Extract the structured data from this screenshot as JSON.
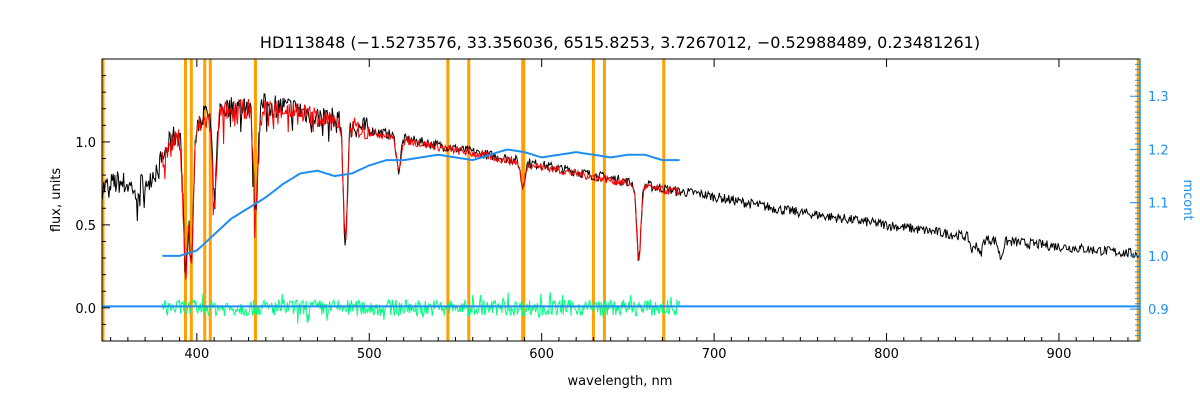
{
  "chart_data": {
    "type": "line",
    "title": "HD113848   (−1.5273576, 33.356036, 6515.8253, 3.7267012, −0.52988489, 0.23481261)",
    "xlabel": "wavelength, nm",
    "ylabel": "flux, units",
    "ylabel_right": "mcont",
    "xlim": [
      345,
      947
    ],
    "ylim": [
      -0.2,
      1.5
    ],
    "ylim_right": [
      0.84,
      1.37
    ],
    "x_ticks": [
      400,
      500,
      600,
      700,
      800,
      900
    ],
    "y_ticks": [
      0.0,
      0.5,
      1.0
    ],
    "y_tick_labels": [
      "0.0",
      "0.5",
      "1.0"
    ],
    "y_ticks_right": [
      0.9,
      1.0,
      1.1,
      1.2,
      1.3
    ],
    "y_tick_labels_right": [
      "0.9",
      "1.0",
      "1.1",
      "1.2",
      "1.3"
    ],
    "grid": false,
    "colors": {
      "observed": "#000000",
      "model": "#ff0000",
      "continuum": "#1e8ff0",
      "residual": "#00ff7f",
      "line_markers": "#ffa000",
      "right_axis": "#1e8ff0"
    },
    "line_markers_nm": [
      345,
      393.4,
      396.8,
      404.6,
      407.8,
      434.0,
      545.6,
      557.7,
      589.0,
      589.6,
      630.0,
      636.4,
      670.8,
      946
    ],
    "series": [
      {
        "role": "observed",
        "x": [
          345,
          355,
          365,
          372,
          378,
          382,
          386,
          390,
          394,
          398,
          402,
          406,
          410,
          415,
          420,
          425,
          430,
          435,
          440,
          445,
          450,
          460,
          470,
          480,
          490,
          500,
          510,
          520,
          530,
          540,
          550,
          560,
          570,
          580,
          590,
          600,
          610,
          620,
          630,
          640,
          650,
          660,
          670,
          680,
          690,
          700,
          720,
          740,
          760,
          780,
          800,
          820,
          840,
          860,
          880,
          900,
          920,
          940,
          947
        ],
        "y": [
          0.72,
          0.76,
          0.72,
          0.78,
          0.85,
          0.95,
          1.02,
          1.06,
          1.08,
          1.1,
          1.14,
          1.17,
          1.19,
          1.2,
          1.21,
          1.21,
          1.22,
          1.22,
          1.22,
          1.22,
          1.21,
          1.19,
          1.16,
          1.13,
          1.1,
          1.07,
          1.05,
          1.02,
          1.0,
          0.98,
          0.96,
          0.94,
          0.92,
          0.9,
          0.88,
          0.86,
          0.84,
          0.82,
          0.8,
          0.78,
          0.76,
          0.74,
          0.72,
          0.7,
          0.69,
          0.67,
          0.63,
          0.59,
          0.56,
          0.53,
          0.5,
          0.47,
          0.44,
          0.41,
          0.39,
          0.37,
          0.35,
          0.33,
          0.32
        ]
      },
      {
        "role": "model",
        "x": [
          380,
          385,
          390,
          395,
          400,
          405,
          410,
          415,
          420,
          430,
          440,
          450,
          460,
          470,
          480,
          490,
          500,
          510,
          520,
          530,
          540,
          550,
          560,
          570,
          580,
          590,
          600,
          610,
          620,
          630,
          640,
          650,
          660,
          670,
          680
        ],
        "y": [
          0.9,
          0.98,
          1.03,
          1.07,
          1.09,
          1.13,
          1.16,
          1.18,
          1.19,
          1.2,
          1.2,
          1.2,
          1.18,
          1.15,
          1.12,
          1.09,
          1.06,
          1.04,
          1.01,
          0.99,
          0.97,
          0.95,
          0.93,
          0.91,
          0.89,
          0.87,
          0.85,
          0.83,
          0.81,
          0.79,
          0.77,
          0.75,
          0.73,
          0.71,
          0.7
        ]
      },
      {
        "role": "continuum",
        "axis": "right",
        "x": [
          380,
          390,
          400,
          410,
          420,
          430,
          440,
          450,
          460,
          470,
          480,
          490,
          500,
          510,
          520,
          530,
          540,
          550,
          560,
          570,
          580,
          590,
          600,
          610,
          620,
          630,
          640,
          650,
          660,
          670,
          680
        ],
        "y": [
          1.0,
          1.0,
          1.01,
          1.04,
          1.07,
          1.09,
          1.11,
          1.135,
          1.155,
          1.16,
          1.15,
          1.155,
          1.17,
          1.18,
          1.18,
          1.185,
          1.19,
          1.185,
          1.18,
          1.19,
          1.2,
          1.195,
          1.185,
          1.19,
          1.195,
          1.19,
          1.185,
          1.19,
          1.19,
          1.18,
          1.18
        ]
      },
      {
        "role": "residual",
        "x": [
          380,
          680
        ],
        "y": [
          0.0,
          0.0
        ],
        "noise_amplitude": 0.05
      },
      {
        "role": "continuum-extension",
        "axis": "right",
        "x": [
          345,
          380,
          680,
          947
        ],
        "y": [
          0.905,
          0.905,
          0.905,
          0.905
        ]
      }
    ],
    "absorption_lines": [
      {
        "x": 393.4,
        "depth": 0.85
      },
      {
        "x": 396.8,
        "depth": 0.8
      },
      {
        "x": 410.2,
        "depth": 0.55
      },
      {
        "x": 434.0,
        "depth": 0.65
      },
      {
        "x": 486.1,
        "depth": 0.7
      },
      {
        "x": 517.0,
        "depth": 0.2
      },
      {
        "x": 589.0,
        "depth": 0.15
      },
      {
        "x": 656.3,
        "depth": 0.45
      },
      {
        "x": 849.8,
        "depth": 0.08
      },
      {
        "x": 854.2,
        "depth": 0.1
      },
      {
        "x": 866.2,
        "depth": 0.1
      }
    ]
  }
}
